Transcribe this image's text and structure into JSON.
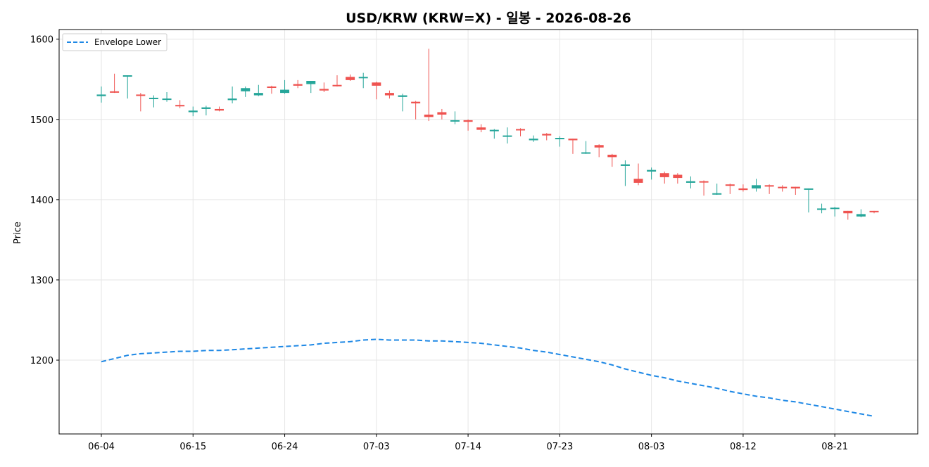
{
  "chart_data": {
    "type": "candlestick",
    "title": "USD/KRW (KRW=X) - 일봉 - 2026-08-26",
    "xlabel": "",
    "ylabel": "Price",
    "ylim": [
      1108,
      1612
    ],
    "yticks": [
      1200,
      1300,
      1400,
      1500,
      1600
    ],
    "xticks": [
      "06-04",
      "06-15",
      "06-24",
      "07-03",
      "07-14",
      "07-23",
      "08-03",
      "08-12",
      "08-21"
    ],
    "xtick_index": [
      0,
      7,
      14,
      21,
      28,
      35,
      42,
      49,
      56
    ],
    "grid": true,
    "legend": {
      "placement": "top-left",
      "entries": [
        "Envelope Lower"
      ]
    },
    "colors": {
      "up": "#26a69a",
      "down": "#ef5350",
      "envelope": "#1e88e5"
    },
    "dates": [
      "06-04",
      "06-05",
      "06-08",
      "06-09",
      "06-10",
      "06-11",
      "06-12",
      "06-15",
      "06-16",
      "06-17",
      "06-18",
      "06-19",
      "06-22",
      "06-23",
      "06-24",
      "06-25",
      "06-26",
      "06-29",
      "06-30",
      "07-01",
      "07-02",
      "07-03",
      "07-06",
      "07-07",
      "07-08",
      "07-09",
      "07-10",
      "07-13",
      "07-14",
      "07-15",
      "07-16",
      "07-17",
      "07-20",
      "07-21",
      "07-22",
      "07-23",
      "07-24",
      "07-27",
      "07-28",
      "07-29",
      "07-30",
      "07-31",
      "08-03",
      "08-04",
      "08-05",
      "08-06",
      "08-07",
      "08-10",
      "08-11",
      "08-12",
      "08-13",
      "08-14",
      "08-17",
      "08-18",
      "08-19",
      "08-20",
      "08-21",
      "08-24",
      "08-25",
      "08-26"
    ],
    "series": [
      {
        "name": "",
        "ohlc": [
          [
            1529,
            1541,
            1521,
            1531
          ],
          [
            1535,
            1557,
            1533,
            1534
          ],
          [
            1554,
            1555,
            1526,
            1555
          ],
          [
            1531,
            1533,
            1510,
            1530
          ],
          [
            1526,
            1530,
            1515,
            1527
          ],
          [
            1525,
            1534,
            1522,
            1526
          ],
          [
            1518,
            1524,
            1514,
            1517
          ],
          [
            1509,
            1516,
            1504,
            1511
          ],
          [
            1513,
            1517,
            1505,
            1515
          ],
          [
            1513,
            1516,
            1510,
            1511
          ],
          [
            1524,
            1541,
            1520,
            1526
          ],
          [
            1535,
            1541,
            1528,
            1539
          ],
          [
            1530,
            1543,
            1529,
            1533
          ],
          [
            1541,
            1542,
            1532,
            1540
          ],
          [
            1533,
            1549,
            1532,
            1537
          ],
          [
            1544,
            1549,
            1539,
            1542
          ],
          [
            1544,
            1548,
            1533,
            1548
          ],
          [
            1538,
            1546,
            1534,
            1536
          ],
          [
            1543,
            1555,
            1541,
            1542
          ],
          [
            1553,
            1556,
            1548,
            1549
          ],
          [
            1552,
            1558,
            1539,
            1553
          ],
          [
            1546,
            1547,
            1525,
            1542
          ],
          [
            1533,
            1536,
            1526,
            1530
          ],
          [
            1528,
            1532,
            1510,
            1530
          ],
          [
            1522,
            1523,
            1500,
            1520
          ],
          [
            1506,
            1588,
            1498,
            1503
          ],
          [
            1509,
            1513,
            1500,
            1506
          ],
          [
            1498,
            1510,
            1494,
            1499
          ],
          [
            1499,
            1500,
            1486,
            1497
          ],
          [
            1490,
            1494,
            1484,
            1487
          ],
          [
            1486,
            1488,
            1476,
            1487
          ],
          [
            1479,
            1490,
            1470,
            1480
          ],
          [
            1488,
            1489,
            1479,
            1487
          ],
          [
            1474,
            1480,
            1472,
            1476
          ],
          [
            1482,
            1483,
            1474,
            1480
          ],
          [
            1476,
            1479,
            1466,
            1477
          ],
          [
            1476,
            1476,
            1457,
            1474
          ],
          [
            1458,
            1473,
            1457,
            1459
          ],
          [
            1468,
            1469,
            1453,
            1465
          ],
          [
            1456,
            1457,
            1441,
            1453
          ],
          [
            1442,
            1449,
            1417,
            1444
          ],
          [
            1426,
            1445,
            1418,
            1421
          ],
          [
            1435,
            1440,
            1425,
            1437
          ],
          [
            1433,
            1435,
            1420,
            1428
          ],
          [
            1431,
            1433,
            1420,
            1427
          ],
          [
            1421,
            1429,
            1414,
            1423
          ],
          [
            1423,
            1424,
            1405,
            1422
          ],
          [
            1407,
            1420,
            1406,
            1408
          ],
          [
            1419,
            1420,
            1407,
            1418
          ],
          [
            1414,
            1419,
            1410,
            1412
          ],
          [
            1414,
            1426,
            1410,
            1418
          ],
          [
            1418,
            1419,
            1407,
            1417
          ],
          [
            1416,
            1418,
            1410,
            1415
          ],
          [
            1416,
            1416,
            1406,
            1414
          ],
          [
            1413,
            1414,
            1384,
            1414
          ],
          [
            1388,
            1395,
            1383,
            1389
          ],
          [
            1390,
            1391,
            1379,
            1390
          ],
          [
            1386,
            1386,
            1375,
            1383
          ],
          [
            1379,
            1388,
            1378,
            1382
          ],
          [
            1386,
            1386,
            1383,
            1385
          ]
        ]
      },
      {
        "name": "Envelope Lower",
        "style": "dashed",
        "values": [
          1198,
          1202,
          1206,
          1208,
          1209,
          1210,
          1211,
          1211,
          1212,
          1212,
          1213,
          1214,
          1215,
          1216,
          1217,
          1218,
          1219,
          1221,
          1222,
          1223,
          1225,
          1226,
          1225,
          1225,
          1225,
          1224,
          1224,
          1223,
          1222,
          1221,
          1219,
          1217,
          1215,
          1212,
          1210,
          1207,
          1204,
          1201,
          1198,
          1194,
          1189,
          1185,
          1181,
          1178,
          1174,
          1171,
          1168,
          1165,
          1161,
          1158,
          1155,
          1153,
          1150,
          1148,
          1145,
          1142,
          1139,
          1136,
          1133,
          1130
        ]
      }
    ]
  }
}
